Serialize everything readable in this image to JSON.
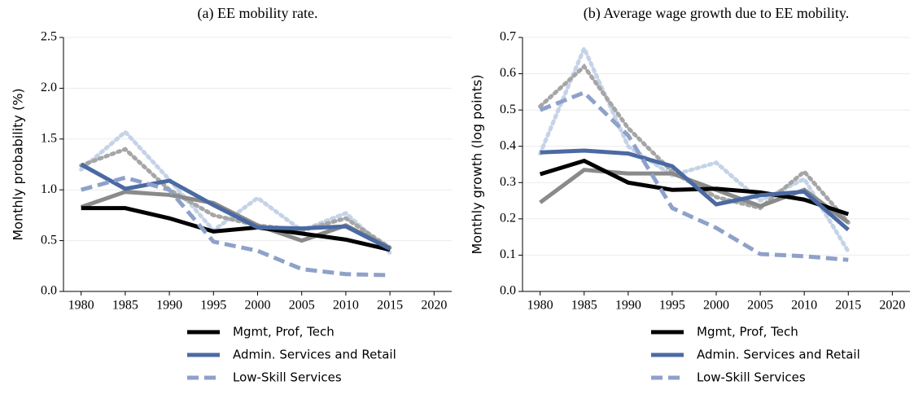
{
  "chart_data": [
    {
      "type": "line",
      "title": "(a) EE mobility rate.",
      "y_label": "Monthly probability (%)",
      "x": [
        1980,
        1985,
        1990,
        1995,
        2000,
        2005,
        2010,
        2015
      ],
      "xlim": [
        1978,
        2022
      ],
      "xticks": [
        1980,
        1985,
        1990,
        1995,
        2000,
        2005,
        2010,
        2015,
        2020
      ],
      "ylim": [
        0,
        2.5
      ],
      "yticks": [
        {
          "value": 0,
          "label": "0.0"
        },
        0.5,
        {
          "value": 1,
          "label": "1.0"
        },
        1.5,
        {
          "value": 2,
          "label": "2.0"
        },
        2.5
      ],
      "grid": true,
      "series": [
        {
          "color": "#c5d3e8",
          "style": "dotted",
          "values": [
            1.2,
            1.57,
            1.1,
            0.6,
            0.92,
            0.6,
            0.77,
            0.38
          ]
        },
        {
          "color": "#a6a6a6",
          "style": "dotted",
          "values": [
            1.24,
            1.4,
            1.0,
            0.75,
            0.65,
            0.6,
            0.72,
            0.43
          ]
        },
        {
          "color": "#8a8a8a",
          "style": "solid",
          "values": [
            0.83,
            0.98,
            0.95,
            0.87,
            0.65,
            0.5,
            0.65,
            0.43
          ]
        },
        {
          "name": "Mgmt, Prof, Tech",
          "color": "#000000",
          "style": "solid",
          "values": [
            0.82,
            0.82,
            0.72,
            0.59,
            0.63,
            0.57,
            0.51,
            0.41
          ]
        },
        {
          "name": "Admin. Services and Retail",
          "color": "#4b6aa3",
          "style": "solid",
          "values": [
            1.25,
            1.01,
            1.09,
            0.85,
            0.63,
            0.62,
            0.64,
            0.42
          ]
        },
        {
          "name": "Low-Skill Services",
          "color": "#8ea1c9",
          "style": "dashed",
          "values": [
            1.0,
            1.12,
            1.0,
            0.49,
            0.4,
            0.22,
            0.17,
            0.16
          ]
        }
      ]
    },
    {
      "type": "line",
      "title": "(b) Average wage growth due to EE mobility.",
      "y_label": "Monthly growth (log points)",
      "x": [
        1980,
        1985,
        1990,
        1995,
        2000,
        2005,
        2010,
        2015
      ],
      "xlim": [
        1978,
        2022
      ],
      "xticks": [
        1980,
        1985,
        1990,
        1995,
        2000,
        2005,
        2010,
        2015,
        2020
      ],
      "ylim": [
        0,
        0.7
      ],
      "yticks": [
        {
          "value": 0,
          "label": "0.0"
        },
        0.1,
        0.2,
        0.3,
        0.4,
        0.5,
        0.6,
        0.7
      ],
      "grid": true,
      "series": [
        {
          "color": "#c5d3e8",
          "style": "dotted",
          "values": [
            0.38,
            0.67,
            0.4,
            0.32,
            0.355,
            0.25,
            0.31,
            0.11
          ]
        },
        {
          "color": "#a6a6a6",
          "style": "dotted",
          "values": [
            0.51,
            0.62,
            0.45,
            0.33,
            0.26,
            0.23,
            0.33,
            0.19
          ]
        },
        {
          "color": "#8a8a8a",
          "style": "solid",
          "values": [
            0.245,
            0.335,
            0.325,
            0.325,
            0.28,
            0.235,
            0.28,
            0.19
          ]
        },
        {
          "name": "Mgmt, Prof, Tech",
          "color": "#000000",
          "style": "solid",
          "values": [
            0.323,
            0.36,
            0.3,
            0.28,
            0.283,
            0.273,
            0.253,
            0.213
          ]
        },
        {
          "name": "Admin. Services and Retail",
          "color": "#4b6aa3",
          "style": "solid",
          "values": [
            0.383,
            0.388,
            0.38,
            0.345,
            0.24,
            0.265,
            0.275,
            0.17
          ]
        },
        {
          "name": "Low-Skill Services",
          "color": "#8ea1c9",
          "style": "dashed",
          "values": [
            0.5,
            0.548,
            0.43,
            0.23,
            0.175,
            0.103,
            0.097,
            0.087
          ]
        }
      ]
    }
  ]
}
